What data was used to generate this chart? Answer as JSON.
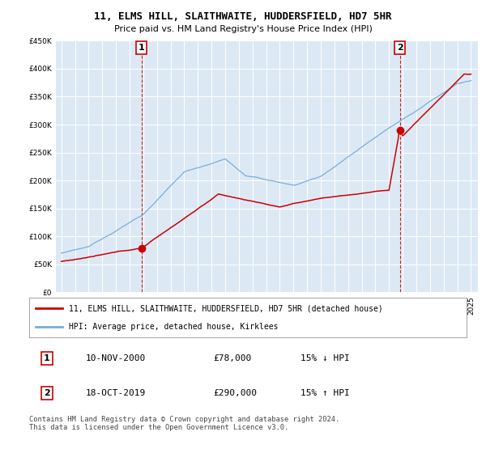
{
  "title": "11, ELMS HILL, SLAITHWAITE, HUDDERSFIELD, HD7 5HR",
  "subtitle": "Price paid vs. HM Land Registry's House Price Index (HPI)",
  "legend_label_red": "11, ELMS HILL, SLAITHWAITE, HUDDERSFIELD, HD7 5HR (detached house)",
  "legend_label_blue": "HPI: Average price, detached house, Kirklees",
  "annotation1_date": "10-NOV-2000",
  "annotation1_price": "£78,000",
  "annotation1_hpi": "15% ↓ HPI",
  "annotation2_date": "18-OCT-2019",
  "annotation2_price": "£290,000",
  "annotation2_hpi": "15% ↑ HPI",
  "footer": "Contains HM Land Registry data © Crown copyright and database right 2024.\nThis data is licensed under the Open Government Licence v3.0.",
  "ylim": [
    0,
    450000
  ],
  "yticks": [
    0,
    50000,
    100000,
    150000,
    200000,
    250000,
    300000,
    350000,
    400000,
    450000
  ],
  "color_red": "#cc0000",
  "color_blue": "#7aacdc",
  "color_vline": "#cc0000",
  "bg_chart": "#dce9f5",
  "bg_outer": "#ffffff",
  "grid_color": "#ffffff",
  "sale1_year": 2000.87,
  "sale1_price": 78000,
  "sale2_year": 2019.79,
  "sale2_price": 290000
}
